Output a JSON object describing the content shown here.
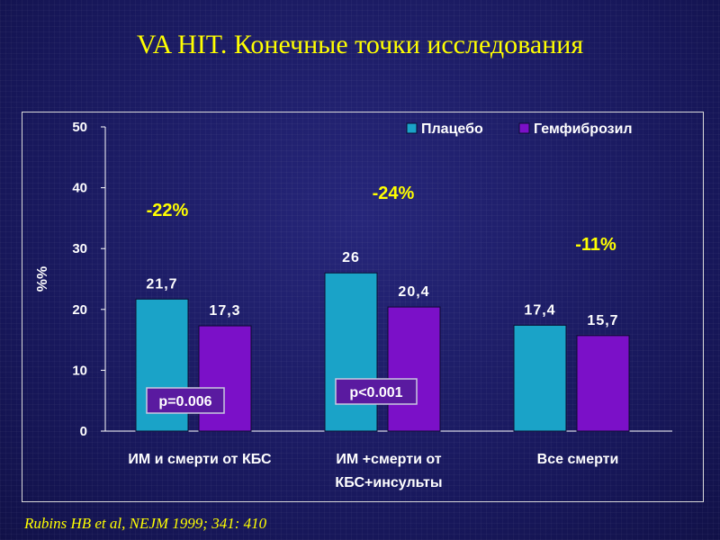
{
  "title": "VA HIT. Конечные точки исследования",
  "source": "Rubins HB et al, NEJM 1999; 341: 410",
  "chart_data": {
    "type": "bar",
    "ylabel": "%%",
    "ylim": [
      0,
      50
    ],
    "yticks": [
      "0",
      "10",
      "20",
      "30",
      "40",
      "50"
    ],
    "categories": [
      [
        "ИМ и смерти от КБС"
      ],
      [
        "ИМ +смерти от",
        "КБС+инсульты"
      ],
      [
        "Все смерти"
      ]
    ],
    "series": [
      {
        "name": "Плацебо",
        "color": "#1aa3c8",
        "values": [
          21.7,
          26,
          17.4
        ],
        "labels": [
          "21,7",
          "26",
          "17,4"
        ]
      },
      {
        "name": "Гемфиброзил",
        "color": "#7b10c8",
        "values": [
          17.3,
          20.4,
          15.7
        ],
        "labels": [
          "17,3",
          "20,4",
          "15,7"
        ]
      }
    ],
    "reductions": [
      "-22%",
      "-24%",
      "-11%"
    ],
    "p_values": [
      "p=0.006",
      "p<0.001",
      ""
    ],
    "legend_position": "top-right",
    "grid": false
  }
}
